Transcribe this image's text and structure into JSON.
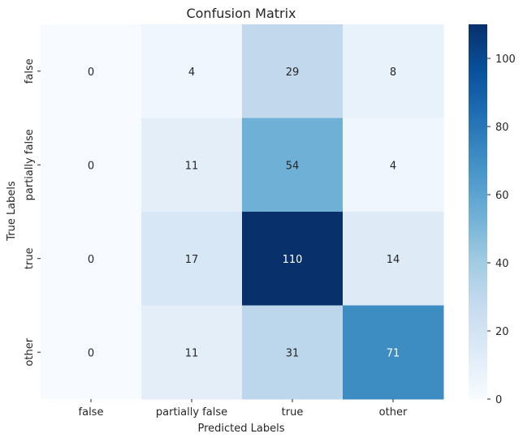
{
  "chart_data": {
    "type": "heatmap",
    "title": "Confusion Matrix",
    "xlabel": "Predicted Labels",
    "ylabel": "True Labels",
    "x_categories": [
      "false",
      "partially false",
      "true",
      "other"
    ],
    "y_categories": [
      "false",
      "partially false",
      "true",
      "other"
    ],
    "values": [
      [
        0,
        4,
        29,
        8
      ],
      [
        0,
        11,
        54,
        4
      ],
      [
        0,
        17,
        110,
        14
      ],
      [
        0,
        11,
        31,
        71
      ]
    ],
    "colorbar": {
      "min": 0,
      "max": 110,
      "ticks": [
        0,
        20,
        40,
        60,
        80,
        100
      ]
    },
    "colormap": "Blues",
    "annotations": true,
    "grid": false
  }
}
